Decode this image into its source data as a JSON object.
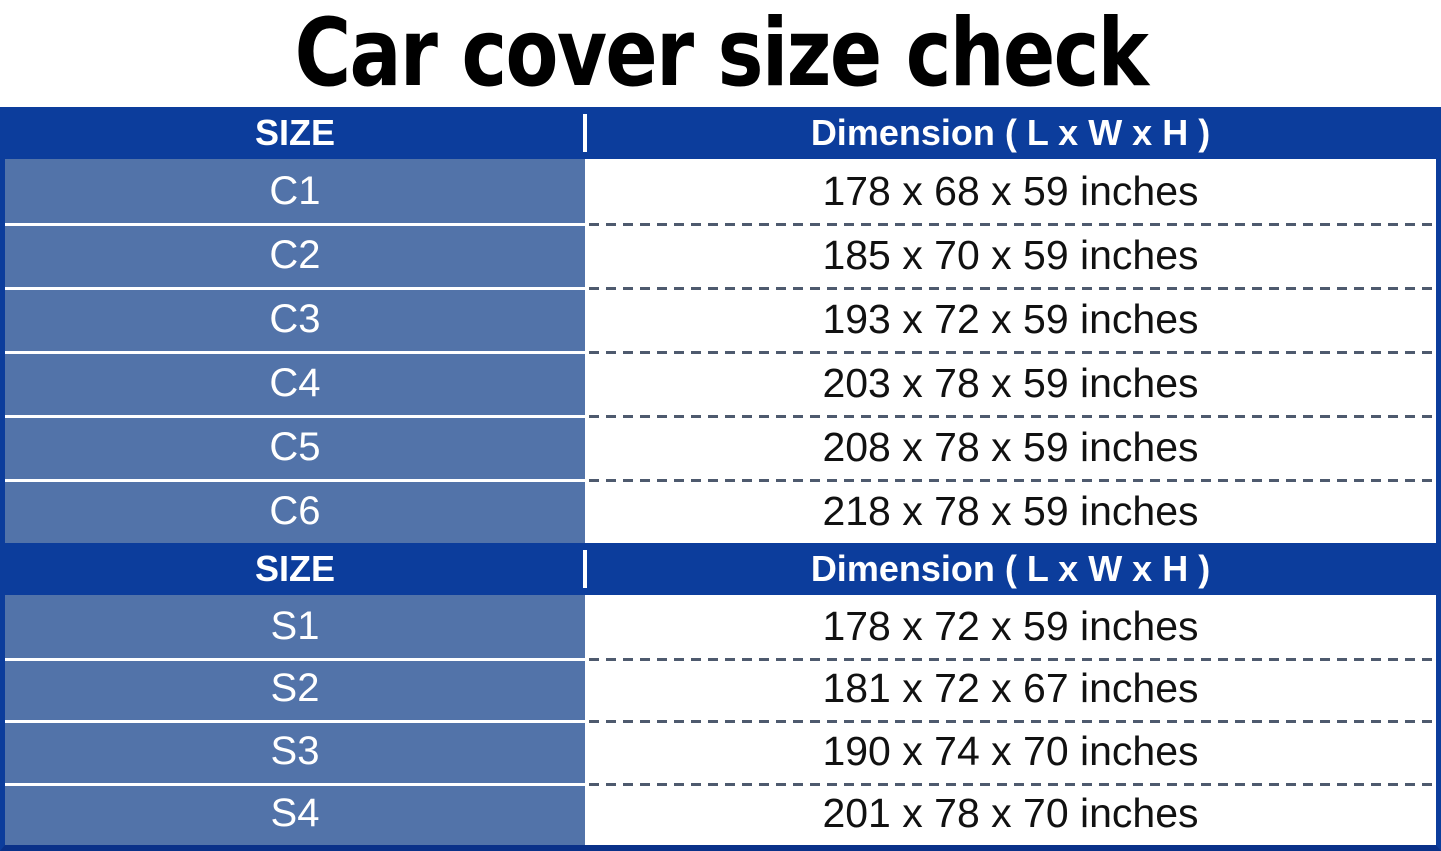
{
  "title": "Car cover size check",
  "colors": {
    "title_text": "#000000",
    "header_bg": "#0c3d9c",
    "header_text": "#ffffff",
    "row_label_bg": "#5273a9",
    "row_label_text": "#ffffff",
    "dimension_text": "#111111",
    "table_border": "#0c3d9c",
    "bottom_border": "#0a3189",
    "dashed_separator": "#4e5a6e"
  },
  "tables": [
    {
      "header": {
        "size_label": "SIZE",
        "dimension_label": "Dimension ( L x W x H )"
      },
      "rows": [
        {
          "size": "C1",
          "dimension": "178 x 68 x 59 inches"
        },
        {
          "size": "C2",
          "dimension": "185 x 70 x 59 inches"
        },
        {
          "size": "C3",
          "dimension": "193 x 72 x 59 inches"
        },
        {
          "size": "C4",
          "dimension": "203 x 78 x 59 inches"
        },
        {
          "size": "C5",
          "dimension": "208 x 78 x 59 inches"
        },
        {
          "size": "C6",
          "dimension": "218 x 78 x 59 inches"
        }
      ]
    },
    {
      "header": {
        "size_label": "SIZE",
        "dimension_label": "Dimension ( L x W x H )"
      },
      "rows": [
        {
          "size": "S1",
          "dimension": "178 x 72 x 59 inches"
        },
        {
          "size": "S2",
          "dimension": "181 x 72 x 67 inches"
        },
        {
          "size": "S3",
          "dimension": "190 x 74 x 70 inches"
        },
        {
          "size": "S4",
          "dimension": "201 x 78 x 70 inches"
        }
      ]
    }
  ]
}
